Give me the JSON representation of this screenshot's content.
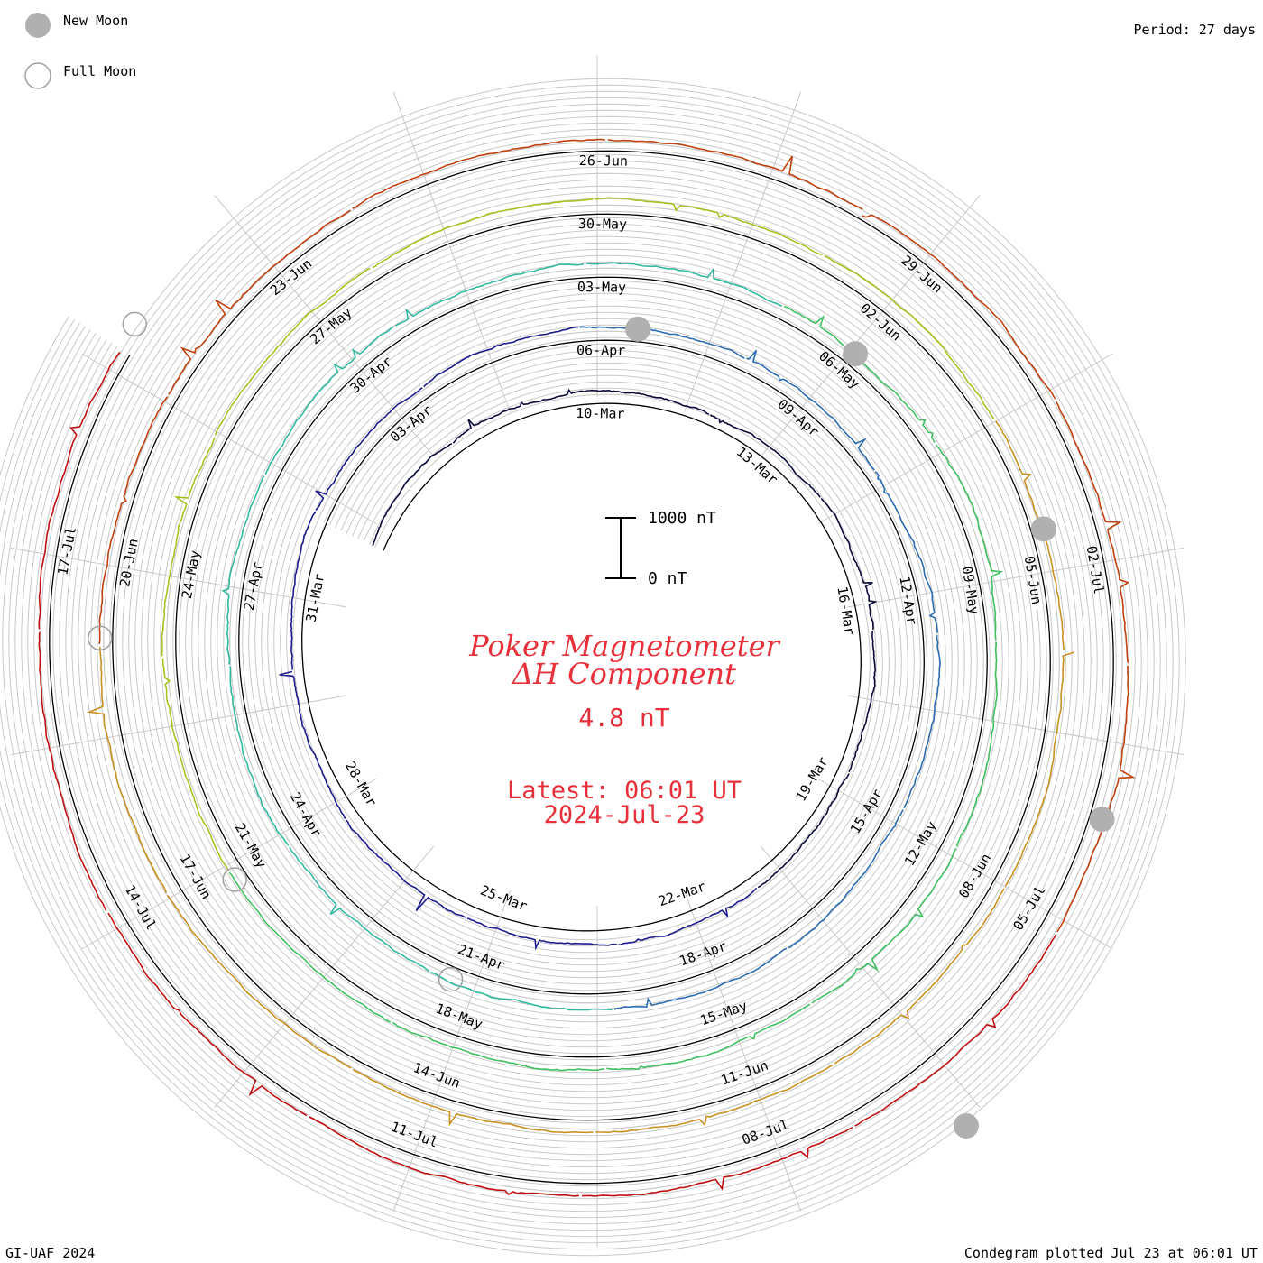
{
  "header": {
    "legend_new_moon": "New Moon",
    "legend_full_moon": "Full Moon",
    "period": "Period: 27 days"
  },
  "center": {
    "title_line1": "Poker Magnetometer",
    "title_line2": "ΔH Component",
    "current_value": "4.8 nT",
    "latest_time": "Latest: 06:01 UT",
    "latest_date": "2024-Jul-23",
    "scale_top": "1000 nT",
    "scale_bottom": "0 nT"
  },
  "footer": {
    "left": "GI-UAF 2024",
    "right": "Condegram plotted Jul 23 at 06:01 UT"
  },
  "colors": {
    "moon_fill": "#b0b0b0",
    "grid": "#c8c8c8",
    "title": "#e8303a"
  },
  "chart_data": {
    "type": "line",
    "subtype": "condegram (spiral plot)",
    "period_days": 27,
    "scale_nT": [
      0,
      1000
    ],
    "rings": [
      {
        "ticks": [
          "10-Mar",
          "13-Mar",
          "16-Mar",
          "19-Mar",
          "22-Mar",
          "25-Mar",
          "28-Mar",
          "31-Mar",
          "03-Apr"
        ],
        "color": "#0b0b3a"
      },
      {
        "ticks": [
          "06-Apr",
          "09-Apr",
          "12-Apr",
          "15-Apr",
          "18-Apr",
          "21-Apr",
          "24-Apr",
          "27-Apr",
          "30-Apr"
        ],
        "color": "#2a3aa8"
      },
      {
        "ticks": [
          "03-May",
          "06-May",
          "09-May",
          "12-May",
          "15-May",
          "18-May",
          "21-May",
          "24-May",
          "27-May"
        ],
        "color": "#30b8a8"
      },
      {
        "ticks": [
          "30-May",
          "02-Jun",
          "05-Jun",
          "08-Jun",
          "11-Jun",
          "14-Jun",
          "17-Jun",
          "20-Jun",
          "23-Jun"
        ],
        "color": "#7cc030"
      },
      {
        "ticks": [
          "26-Jun",
          "29-Jun",
          "02-Jul",
          "05-Jul",
          "08-Jul",
          "11-Jul",
          "14-Jul",
          "17-Jul"
        ],
        "color": "#c89020"
      }
    ],
    "series_gradient": [
      "#0b0b3a",
      "#1c1c8c",
      "#2c6cb0",
      "#30b8a0",
      "#40c060",
      "#a8c020",
      "#c89020",
      "#c04010",
      "#c01010"
    ]
  }
}
